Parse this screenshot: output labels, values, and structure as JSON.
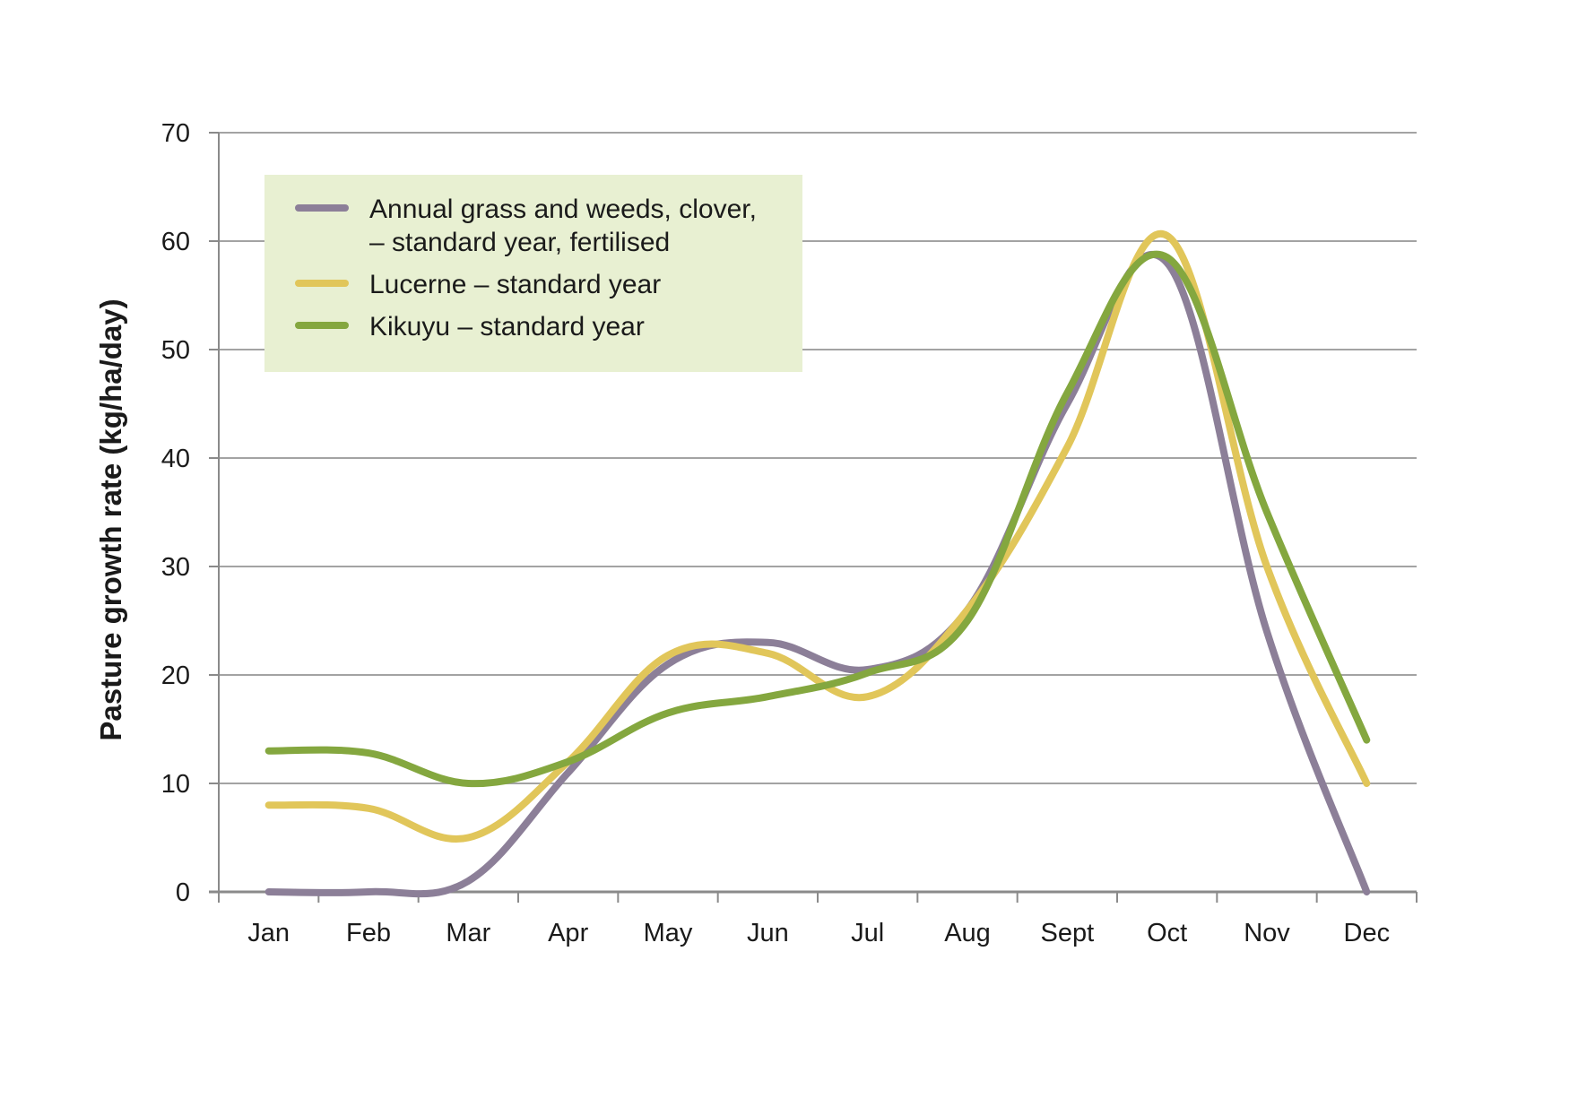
{
  "chart_data": {
    "type": "line",
    "title": "",
    "xlabel": "",
    "ylabel": "Pasture growth rate (kg/ha/day)",
    "ylim": [
      0,
      70
    ],
    "yticks": [
      0,
      10,
      20,
      30,
      40,
      50,
      60,
      70
    ],
    "grid": true,
    "legend_position": "top-left",
    "categories": [
      "Jan",
      "Feb",
      "Mar",
      "Apr",
      "May",
      "Jun",
      "Jul",
      "Aug",
      "Sept",
      "Oct",
      "Nov",
      "Dec"
    ],
    "series": [
      {
        "name": "Annual grass and weeds, clover, – standard year, fertilised",
        "legend_lines": [
          "Annual grass and weeds, clover,",
          "– standard year, fertilised"
        ],
        "color": "#8c7f98",
        "values": [
          0,
          0,
          1,
          11,
          21,
          23,
          20.5,
          26,
          45,
          58,
          24,
          0
        ]
      },
      {
        "name": "Lucerne – standard year",
        "legend_lines": [
          "Lucerne – standard year"
        ],
        "color": "#e1c65a",
        "values": [
          8,
          7.7,
          5,
          12,
          21.8,
          22,
          18,
          26,
          41,
          60.5,
          30,
          10
        ]
      },
      {
        "name": "Kikuyu – standard year",
        "legend_lines": [
          "Kikuyu – standard year"
        ],
        "color": "#84a73f",
        "values": [
          13,
          12.8,
          10,
          12,
          16.5,
          18,
          20.2,
          25,
          46,
          58.5,
          35,
          14
        ]
      }
    ],
    "colors": {
      "grid": "#a3a3a3",
      "axis": "#8a8a8a",
      "legend_bg": "#e8f0d2"
    }
  }
}
